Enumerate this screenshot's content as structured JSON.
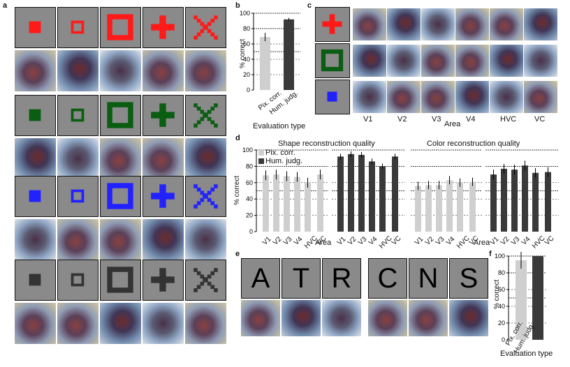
{
  "panels": {
    "a": "a",
    "b": "b",
    "c": "c",
    "d": "d",
    "e": "e",
    "f": "f"
  },
  "colors": {
    "red": "#ff1a1a",
    "green": "#0b5d12",
    "blue": "#2222ff",
    "dark": "#333333",
    "light_bar": "#cfcfcf",
    "dark_bar": "#3a3a3a"
  },
  "panel_e": {
    "letters": [
      "A",
      "T",
      "R",
      "C",
      "N",
      "S"
    ]
  },
  "chart_b": {
    "ylabel": "% correct",
    "xlabel": "Evaluation type",
    "categories": [
      "Pix. corr.",
      "Hum. judg."
    ],
    "ticks": [
      "0",
      "20",
      "40",
      "60",
      "80",
      "100"
    ]
  },
  "chart_f": {
    "ylabel": "% correct",
    "xlabel": "Evaluation type",
    "categories": [
      "Pix. corr.",
      "Hum. judg."
    ],
    "ticks": [
      "0",
      "20",
      "40",
      "60",
      "80",
      "100"
    ]
  },
  "panel_c": {
    "areas": [
      "V1",
      "V2",
      "V3",
      "V4",
      "HVC",
      "VC"
    ],
    "xlabel": "Area"
  },
  "panel_d": {
    "title_shape": "Shape reconstruction quality",
    "title_color": "Color reconstruction quality",
    "legend": [
      "Pix. corr.",
      "Hum. judg."
    ],
    "ylabel": "% correct",
    "xlabel": "Area",
    "areas": [
      "V1",
      "V2",
      "V3",
      "V4",
      "HVC",
      "VC"
    ],
    "ticks": [
      "0",
      "20",
      "40",
      "60",
      "80",
      "100"
    ]
  },
  "chart_data": [
    {
      "type": "bar",
      "title": "",
      "categories": [
        "Pix. corr.",
        "Hum. judg."
      ],
      "values": [
        69,
        92
      ],
      "ylim": [
        0,
        100
      ],
      "xlabel": "Evaluation type",
      "ylabel": "% correct"
    },
    {
      "type": "bar",
      "title": "Shape reconstruction quality",
      "categories": [
        "V1",
        "V2",
        "V3",
        "V4",
        "HVC",
        "VC"
      ],
      "series": [
        {
          "name": "Pix. corr.",
          "values": [
            69,
            70,
            68,
            67,
            60,
            70
          ]
        },
        {
          "name": "Hum. judg.",
          "values": [
            92,
            95,
            94,
            86,
            80,
            92
          ]
        }
      ],
      "ylim": [
        0,
        100
      ],
      "xlabel": "Area",
      "ylabel": "% correct"
    },
    {
      "type": "bar",
      "title": "Color reconstruction quality",
      "categories": [
        "V1",
        "V2",
        "V3",
        "V4",
        "HVC",
        "VC"
      ],
      "series": [
        {
          "name": "Pix. corr.",
          "values": [
            56,
            57,
            57,
            63,
            60,
            61
          ]
        },
        {
          "name": "Hum. judg.",
          "values": [
            70,
            77,
            76,
            81,
            72,
            73
          ]
        }
      ],
      "ylim": [
        0,
        100
      ],
      "xlabel": "Area",
      "ylabel": "% correct"
    },
    {
      "type": "bar",
      "title": "",
      "categories": [
        "Pix. corr.",
        "Hum. judg."
      ],
      "values": [
        95,
        100
      ],
      "ylim": [
        0,
        100
      ],
      "xlabel": "Evaluation type",
      "ylabel": "% correct"
    }
  ]
}
